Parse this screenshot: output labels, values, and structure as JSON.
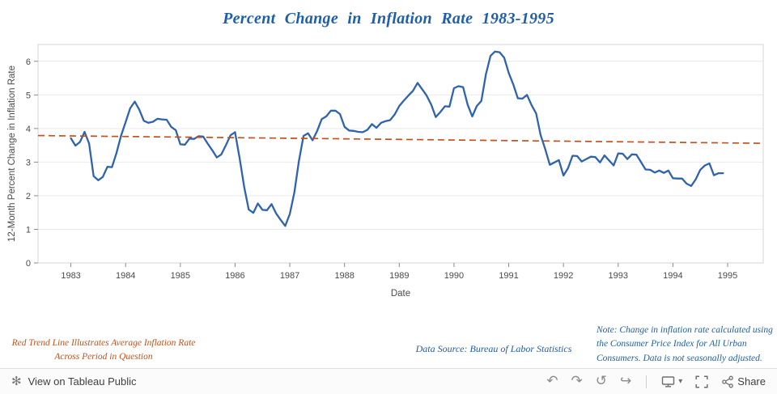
{
  "title": "Percent Change in Inflation Rate 1983-1995",
  "chart_data": {
    "type": "line",
    "title": "Percent Change in Inflation Rate 1983-1995",
    "xlabel": "Date",
    "ylabel": "12-Month Percent Change in Inflation Rate",
    "x_ticks": [
      1983,
      1984,
      1985,
      1986,
      1987,
      1988,
      1989,
      1990,
      1991,
      1992,
      1993,
      1994,
      1995
    ],
    "x_domain": [
      1982.4,
      1995.65
    ],
    "ylim": [
      0,
      6.5
    ],
    "y_ticks": [
      0,
      1,
      2,
      3,
      4,
      5,
      6
    ],
    "x_start_year": 1983,
    "points_per_year": 12,
    "grid": "horizontal",
    "legend": "none",
    "series": [
      {
        "name": "12-Month Percent Change in Inflation Rate (monthly, Jan 1983 - Dec 1994)",
        "color": "#2f63ad",
        "monthly_values": [
          3.71,
          3.49,
          3.6,
          3.9,
          3.55,
          2.58,
          2.46,
          2.56,
          2.86,
          2.85,
          3.27,
          3.79,
          4.19,
          4.6,
          4.8,
          4.56,
          4.23,
          4.17,
          4.2,
          4.29,
          4.27,
          4.26,
          4.05,
          3.95,
          3.53,
          3.52,
          3.7,
          3.69,
          3.77,
          3.76,
          3.55,
          3.35,
          3.14,
          3.23,
          3.51,
          3.8,
          3.89,
          3.11,
          2.26,
          1.59,
          1.49,
          1.77,
          1.58,
          1.57,
          1.75,
          1.47,
          1.28,
          1.1,
          1.46,
          2.1,
          3.03,
          3.78,
          3.86,
          3.65,
          3.93,
          4.28,
          4.36,
          4.53,
          4.53,
          4.43,
          4.05,
          3.94,
          3.93,
          3.9,
          3.89,
          3.96,
          4.13,
          4.02,
          4.17,
          4.22,
          4.25,
          4.42,
          4.67,
          4.83,
          4.98,
          5.12,
          5.36,
          5.17,
          4.98,
          4.71,
          4.34,
          4.49,
          4.66,
          4.65,
          5.2,
          5.26,
          5.23,
          4.71,
          4.36,
          4.67,
          4.82,
          5.62,
          6.16,
          6.29,
          6.27,
          6.11,
          5.65,
          5.31,
          4.9,
          4.89,
          5.0,
          4.7,
          4.45,
          3.8,
          3.39,
          2.92,
          2.99,
          3.06,
          2.6,
          2.82,
          3.19,
          3.18,
          3.02,
          3.09,
          3.16,
          3.15,
          2.99,
          3.2,
          3.05,
          2.9,
          3.26,
          3.25,
          3.09,
          3.23,
          3.22,
          3.0,
          2.78,
          2.77,
          2.69,
          2.75,
          2.68,
          2.75,
          2.52,
          2.51,
          2.51,
          2.36,
          2.29,
          2.49,
          2.77,
          2.9,
          2.96,
          2.61,
          2.67,
          2.67
        ]
      }
    ],
    "trend_line": {
      "name": "Red Trend Line - Average Inflation Rate Across Period",
      "color": "#c4511d",
      "style": "dashed",
      "start_value": 3.79,
      "end_value": 3.56
    }
  },
  "annotations": {
    "trend_note_line1": "Red Trend Line Illustrates Average Inflation Rate",
    "trend_note_line2": "Across Period in Question",
    "data_source": "Data Source: Bureau of Labor Statistics",
    "method_note": "Note: Change in inflation rate calculated using the Consumer Price Index for All Urban Consumers. Data is not seasonally adjusted."
  },
  "toolbar": {
    "view_label": "View on Tableau Public",
    "share_label": "Share",
    "icons": {
      "tableau_logo": "✻",
      "undo": "↶",
      "redo": "↷",
      "reset": "↺",
      "refresh": "↪",
      "caret": "▾"
    }
  },
  "colors": {
    "title_blue": "#1f5fa8",
    "line_blue": "#2f63ad",
    "trend_red": "#c4511d",
    "annotation_red": "#c4511d",
    "annotation_blue": "#1f5fa8"
  }
}
